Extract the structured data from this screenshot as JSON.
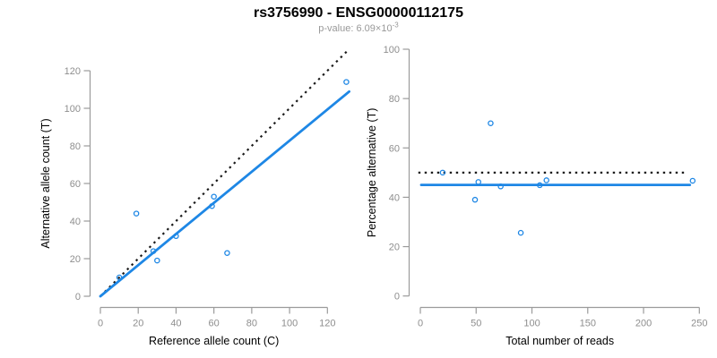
{
  "header": {
    "title": "rs3756990 - ENSG00000112175",
    "subtitle_label": "p-value: ",
    "subtitle_value": "6.09",
    "subtitle_times": "×10",
    "subtitle_exponent": "-3"
  },
  "colors": {
    "accent_blue": "#1E87E5",
    "dotted_line": "#1A1A1A",
    "axis_line": "#9B9B9B",
    "tick_label": "#8E8E8E",
    "axis_title": "#000000",
    "title": "#000000",
    "subtitle": "#999999",
    "background": "#FFFFFF"
  },
  "chart_data": [
    {
      "type": "scatter",
      "name": "allele-counts",
      "xlabel": "Reference allele count (C)",
      "ylabel": "Alternative allele count (T)",
      "xlim": [
        0,
        120
      ],
      "ylim": [
        0,
        120
      ],
      "xticks": [
        0,
        20,
        40,
        60,
        80,
        100,
        120
      ],
      "yticks": [
        0,
        20,
        40,
        60,
        80,
        100,
        120
      ],
      "grid": false,
      "legend": "none",
      "points": [
        [
          10,
          10
        ],
        [
          19,
          44
        ],
        [
          28,
          24
        ],
        [
          30,
          19
        ],
        [
          40,
          32
        ],
        [
          59,
          48
        ],
        [
          60,
          53
        ],
        [
          67,
          23
        ],
        [
          130,
          114
        ]
      ],
      "lines": [
        {
          "name": "identity-line",
          "style": "dotted",
          "color": "dotted_line",
          "x": [
            0,
            130.7
          ],
          "y": [
            0,
            130.7
          ]
        },
        {
          "name": "fit-line",
          "style": "solid",
          "color": "accent_blue",
          "x": [
            0,
            131.5
          ],
          "y": [
            0,
            108.9
          ]
        }
      ]
    },
    {
      "type": "scatter",
      "name": "percentage-vs-coverage",
      "xlabel": "Total number of reads",
      "ylabel": "Percentage alternative (T)",
      "xlim": [
        0,
        250
      ],
      "ylim": [
        0,
        100
      ],
      "xticks": [
        0,
        50,
        100,
        150,
        200,
        250
      ],
      "yticks": [
        0,
        20,
        40,
        60,
        80,
        100
      ],
      "grid": false,
      "legend": "none",
      "points": [
        [
          20,
          50
        ],
        [
          49,
          39
        ],
        [
          52,
          46.2
        ],
        [
          63,
          70
        ],
        [
          72,
          44.4
        ],
        [
          90,
          25.6
        ],
        [
          107,
          44.9
        ],
        [
          113,
          46.9
        ],
        [
          244,
          46.7
        ]
      ],
      "lines": [
        {
          "name": "null-line",
          "style": "dotted",
          "color": "dotted_line",
          "x": [
            -1.8,
            239.5
          ],
          "y": [
            50,
            50
          ]
        },
        {
          "name": "fit-line",
          "style": "solid",
          "color": "accent_blue",
          "x": [
            0.8,
            241.5
          ],
          "y": [
            45,
            45
          ]
        }
      ]
    }
  ]
}
